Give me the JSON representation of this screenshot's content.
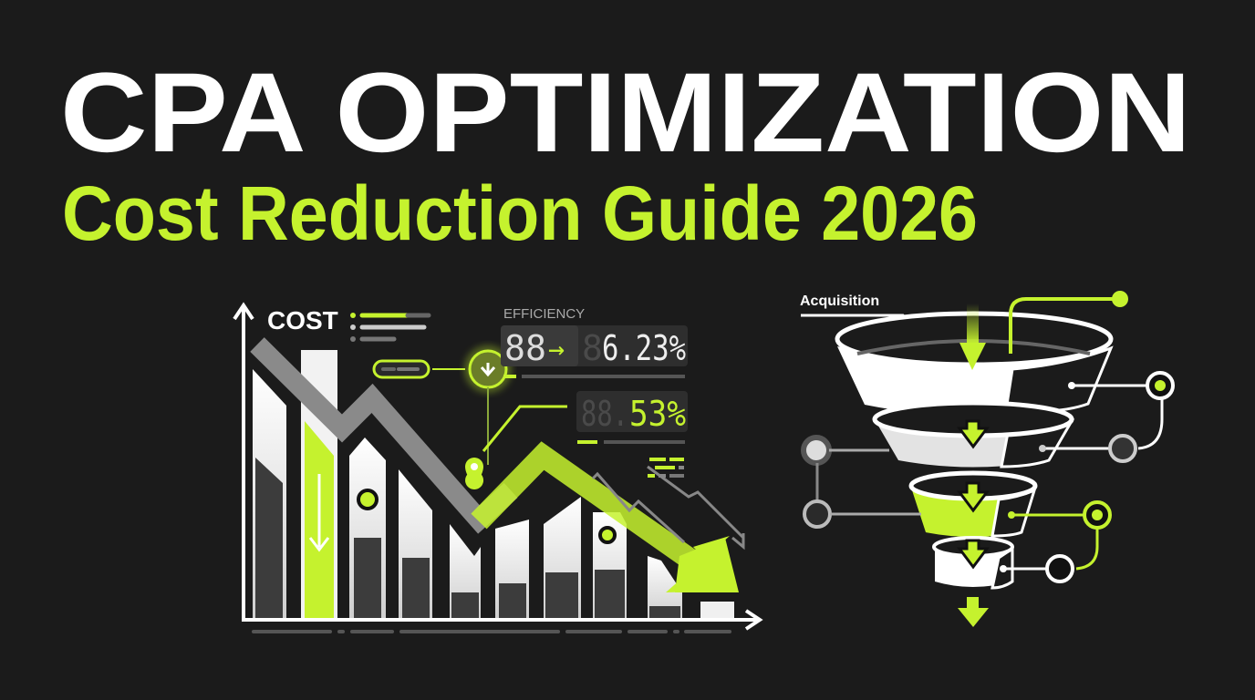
{
  "header": {
    "title": "CPA OPTIMIZATION",
    "subtitle": "Cost Reduction Guide 2026"
  },
  "chart_panel": {
    "axis_label": "COST",
    "efficiency_label": "EFFICIENCY",
    "display1_before": "88",
    "display1_arrow": "→",
    "display1_dim": "8",
    "display1_value": "6.23%",
    "display2_dim": "88.",
    "display2_value": "53%"
  },
  "funnel": {
    "label": "Acquisition"
  },
  "colors": {
    "background": "#1b1b1b",
    "accent": "#c5f22e",
    "text": "#ffffff",
    "muted": "#6e6e6e"
  }
}
